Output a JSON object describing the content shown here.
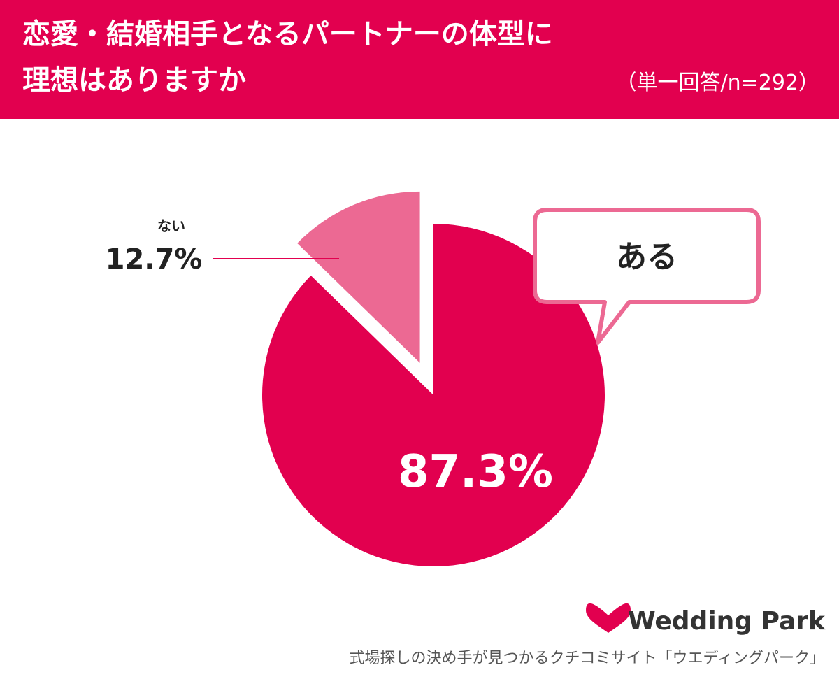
{
  "chart_data": {
    "type": "pie",
    "title_lines": [
      "恋愛・結婚相手となるパートナーの体型に",
      "理想はありますか"
    ],
    "subtitle": "（単一回答/n=292）",
    "categories": [
      "ある",
      "ない"
    ],
    "values": [
      87.3,
      12.7
    ],
    "value_labels": [
      "87.3%",
      "12.7%"
    ],
    "colors": [
      "#e2004f",
      "#ec6993"
    ],
    "start_angle": 0,
    "direction": "clockwise",
    "exploded": [
      false,
      true
    ]
  },
  "footer": {
    "brand": "Wedding Park",
    "tagline": "式場探しの決め手が見つかるクチコミサイト「ウエディングパーク」"
  }
}
